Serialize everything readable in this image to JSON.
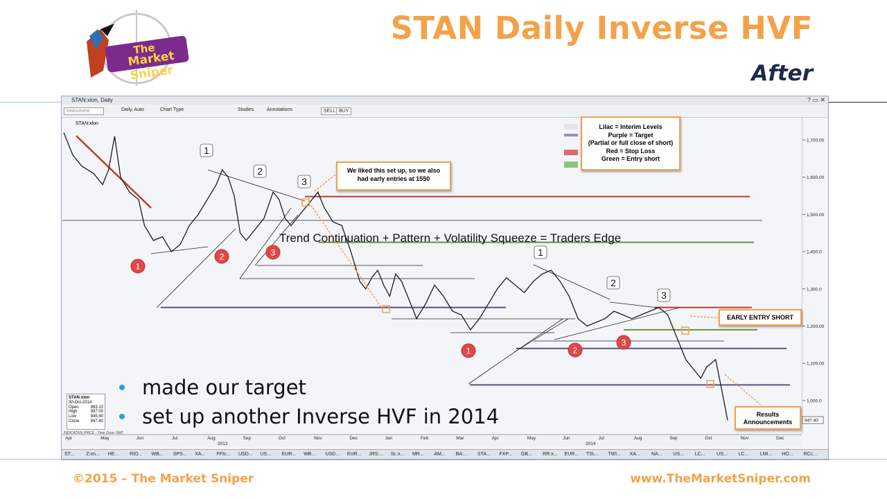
{
  "header": {
    "title": "STAN Daily Inverse HVF",
    "subtitle": "After",
    "logo_text": "The Market Sniper"
  },
  "footer": {
    "copyright": "©2015 – The Market Sniper",
    "website": "www.TheMarketSniper.com"
  },
  "window": {
    "title": "STAN:xlon, Daily",
    "controls": "? ▭ ✕",
    "toolbar": {
      "instrument_placeholder": "Instrument",
      "period": "Daily, Auto",
      "chart_type": "Chart Type",
      "studies": "Studies",
      "annotations": "Annotations",
      "sell": "SELL",
      "buy": "BUY"
    },
    "symbol_label": "STAN:xlon",
    "taskbar": [
      "ST...",
      "Z:xn...",
      "HE...",
      "RIO...",
      "WB...",
      "SPS...",
      "XA...",
      "FFIc...",
      "USD...",
      "US...",
      "EUR...",
      "WB...",
      "USD...",
      "EUR...",
      "JRS:...",
      "SL:x...",
      "MR...",
      "AM...",
      "BA:...",
      "STA...",
      "FXP...",
      "GB...",
      "RR:x...",
      "EUR...",
      "TSL...",
      "TWI...",
      "XA...",
      "NA...",
      "US...",
      "LC...",
      "US...",
      "LC...",
      "LMI...",
      "HO...",
      "RCc..."
    ]
  },
  "bullets": [
    "made our target",
    "set up another Inverse HVF in 2014"
  ],
  "annotations": {
    "legend_lines": [
      "Lilac = Interim Levels",
      "Purple = Target",
      "(Partial or full close of short)",
      "Red = Stop Loss",
      "Green = Entry short"
    ],
    "note_setup": "We liked this set up, so we also had early entries at 1550",
    "overlay": "Trend Continuation + Pattern + Volatility Squeeze = Traders Edge",
    "early_entry": "EARLY ENTRY SHORT",
    "results": "Results Announcements",
    "wave_labels": [
      "1",
      "2",
      "3",
      "1",
      "2",
      "3"
    ],
    "circle_labels": [
      "1",
      "2",
      "3",
      "1",
      "2",
      "3"
    ]
  },
  "info_box": {
    "symbol": "STAN:xlon",
    "date": "30-Oct-2014",
    "rows": [
      {
        "label": "Open",
        "value": "993.10"
      },
      {
        "label": "High",
        "value": "997.00"
      },
      {
        "label": "Low",
        "value": "945.90"
      },
      {
        "label": "Close",
        "value": "947.40"
      }
    ],
    "indicative": "INDICATIVE PRICE · Time Zone: GMT"
  },
  "chart_data": {
    "type": "line",
    "title": "STAN:xlon, Daily",
    "y_ticks": [
      "1,700.00",
      "1,600.00",
      "1,500.00",
      "1,400.0",
      "1,300.0",
      "1,200.00",
      "1,100.00",
      "1,000.0"
    ],
    "ylim": [
      900,
      1760
    ],
    "last_price_label": "947.40",
    "x_month_labels": [
      "Apr",
      "May",
      "Jun",
      "Jul",
      "Aug",
      "Sep",
      "Oct",
      "Nov",
      "Dec",
      "Jan",
      "Feb",
      "Mar",
      "Apr",
      "May",
      "Jun",
      "Jul",
      "Aug",
      "Sep",
      "Oct",
      "Nov",
      "Dec"
    ],
    "x_year_labels": [
      "2013",
      "2014"
    ],
    "series": [
      {
        "values": [
          [
            0,
            1720
          ],
          [
            3,
            1660
          ],
          [
            6,
            1630
          ],
          [
            10,
            1610
          ],
          [
            13,
            1580
          ],
          [
            15,
            1620
          ],
          [
            17,
            1710
          ],
          [
            19,
            1600
          ],
          [
            22,
            1560
          ],
          [
            25,
            1540
          ],
          [
            27,
            1470
          ],
          [
            30,
            1430
          ],
          [
            33,
            1440
          ],
          [
            36,
            1400
          ],
          [
            39,
            1420
          ],
          [
            42,
            1470
          ],
          [
            45,
            1500
          ],
          [
            48,
            1540
          ],
          [
            51,
            1580
          ],
          [
            53,
            1620
          ],
          [
            55,
            1600
          ],
          [
            57,
            1550
          ],
          [
            59,
            1450
          ],
          [
            61,
            1430
          ],
          [
            64,
            1460
          ],
          [
            67,
            1490
          ],
          [
            70,
            1560
          ],
          [
            72,
            1540
          ],
          [
            74,
            1490
          ],
          [
            76,
            1470
          ],
          [
            79,
            1500
          ],
          [
            82,
            1530
          ],
          [
            85,
            1560
          ],
          [
            87,
            1520
          ],
          [
            90,
            1480
          ],
          [
            93,
            1470
          ],
          [
            96,
            1400
          ],
          [
            99,
            1320
          ],
          [
            101,
            1300
          ],
          [
            103,
            1330
          ],
          [
            105,
            1350
          ],
          [
            107,
            1310
          ],
          [
            109,
            1280
          ],
          [
            111,
            1340
          ],
          [
            113,
            1320
          ],
          [
            116,
            1260
          ],
          [
            118,
            1220
          ],
          [
            121,
            1260
          ],
          [
            124,
            1310
          ],
          [
            127,
            1280
          ],
          [
            130,
            1240
          ],
          [
            133,
            1230
          ],
          [
            136,
            1190
          ],
          [
            139,
            1220
          ],
          [
            142,
            1260
          ],
          [
            145,
            1300
          ],
          [
            148,
            1330
          ],
          [
            151,
            1310
          ],
          [
            154,
            1290
          ],
          [
            157,
            1320
          ],
          [
            160,
            1340
          ],
          [
            163,
            1350
          ],
          [
            166,
            1320
          ],
          [
            169,
            1280
          ],
          [
            172,
            1220
          ],
          [
            175,
            1200
          ],
          [
            178,
            1210
          ],
          [
            181,
            1220
          ],
          [
            184,
            1240
          ],
          [
            187,
            1230
          ],
          [
            190,
            1220
          ],
          [
            193,
            1230
          ],
          [
            196,
            1240
          ],
          [
            199,
            1250
          ],
          [
            202,
            1230
          ],
          [
            205,
            1170
          ],
          [
            208,
            1110
          ],
          [
            211,
            1080
          ],
          [
            213,
            1060
          ],
          [
            215,
            1090
          ],
          [
            218,
            1110
          ],
          [
            220,
            1030
          ],
          [
            222,
            947
          ]
        ]
      }
    ],
    "horizontal_levels": [
      {
        "color": "#c0392b",
        "price": 1548,
        "kind": "stop"
      },
      {
        "color": "#6b8e3d",
        "price": 1425,
        "kind": "entry"
      },
      {
        "color": "#5b4e8a",
        "price": 1250,
        "kind": "target"
      },
      {
        "color": "#c0392b",
        "price": 1250,
        "kind": "stop"
      },
      {
        "color": "#6b8e3d",
        "price": 1190,
        "kind": "entry"
      },
      {
        "color": "#5b4e8a",
        "price": 1140,
        "kind": "target"
      },
      {
        "color": "#5b4e8a",
        "price": 1042,
        "kind": "target"
      }
    ]
  }
}
